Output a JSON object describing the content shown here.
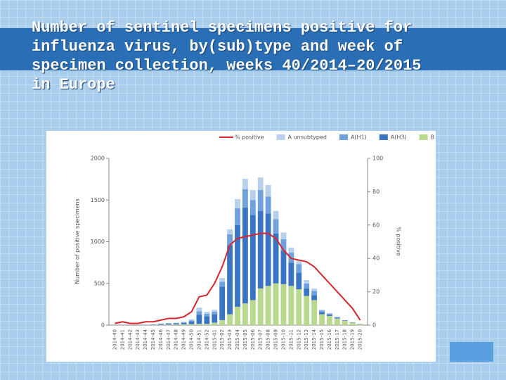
{
  "chart_data": {
    "type": "bar",
    "title": "Number of sentinel specimens positive for influenza virus, by(sub)type and week of specimen collection, weeks 40/2014–20/2015 in Europe",
    "ylabel": "Number of positive specimens",
    "y2label": "% positive",
    "stacked": true,
    "categories": [
      "2014-40",
      "2014-41",
      "2014-42",
      "2014-43",
      "2014-44",
      "2014-45",
      "2014-46",
      "2014-47",
      "2014-48",
      "2014-49",
      "2014-50",
      "2014-51",
      "2014-52",
      "2015-01",
      "2015-02",
      "2015-03",
      "2015-04",
      "2015-05",
      "2015-06",
      "2015-07",
      "2015-08",
      "2015-09",
      "2015-10",
      "2015-11",
      "2015-12",
      "2015-13",
      "2015-14",
      "2015-15",
      "2015-16",
      "2015-17",
      "2015-18",
      "2015-19",
      "2015-20"
    ],
    "series": [
      {
        "name": "% positive",
        "type": "line",
        "axis": "y2",
        "color": "#d7262b",
        "values": [
          1,
          2,
          1,
          1,
          2,
          2,
          3,
          4,
          4,
          5,
          8,
          17,
          18,
          25,
          35,
          48,
          52,
          53,
          54,
          55,
          55,
          52,
          45,
          40,
          39,
          38,
          35,
          30,
          25,
          20,
          15,
          10,
          3
        ]
      },
      {
        "name": "A unsubtyped",
        "color": "#b7d0ec",
        "values": [
          0,
          0,
          0,
          0,
          0,
          1,
          3,
          4,
          4,
          7,
          13,
          45,
          25,
          25,
          45,
          60,
          110,
          125,
          120,
          150,
          140,
          100,
          80,
          60,
          50,
          40,
          30,
          10,
          8,
          4,
          2,
          1,
          0
        ]
      },
      {
        "name": "A(H1)",
        "color": "#6fa2dc",
        "values": [
          0,
          0,
          0,
          0,
          0,
          2,
          4,
          5,
          6,
          8,
          15,
          40,
          30,
          30,
          60,
          130,
          200,
          220,
          180,
          250,
          200,
          170,
          140,
          120,
          100,
          60,
          50,
          20,
          12,
          6,
          3,
          1,
          1
        ]
      },
      {
        "name": "A(H3)",
        "color": "#3a75c4",
        "values": [
          0,
          0,
          0,
          0,
          0,
          4,
          8,
          10,
          12,
          15,
          30,
          110,
          90,
          100,
          400,
          830,
          980,
          1150,
          1020,
          930,
          870,
          600,
          400,
          280,
          200,
          90,
          60,
          25,
          15,
          10,
          5,
          3,
          2
        ]
      },
      {
        "name": "B",
        "color": "#b8d98e",
        "values": [
          0,
          0,
          0,
          0,
          0,
          3,
          5,
          6,
          8,
          10,
          12,
          15,
          15,
          30,
          60,
          130,
          220,
          260,
          300,
          440,
          470,
          500,
          490,
          470,
          430,
          350,
          300,
          130,
          110,
          80,
          50,
          30,
          12
        ]
      }
    ],
    "ylim": [
      0,
      2000
    ],
    "yticks": [
      0,
      500,
      1000,
      1500,
      2000
    ],
    "y2lim": [
      0,
      100
    ],
    "y2ticks": [
      0,
      20,
      40,
      60,
      80,
      100
    ]
  }
}
